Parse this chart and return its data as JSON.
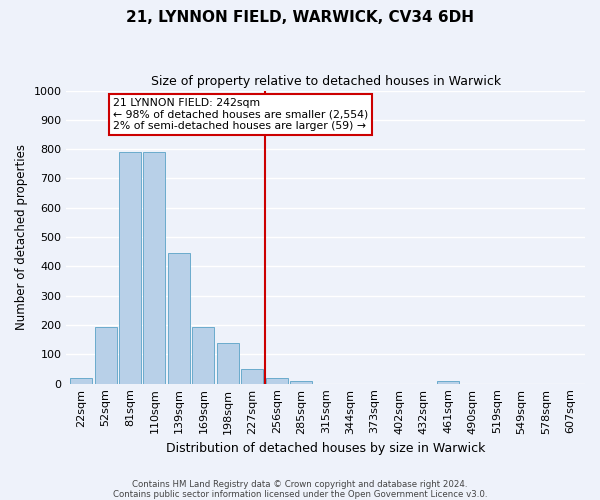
{
  "title": "21, LYNNON FIELD, WARWICK, CV34 6DH",
  "subtitle": "Size of property relative to detached houses in Warwick",
  "xlabel": "Distribution of detached houses by size in Warwick",
  "ylabel": "Number of detached properties",
  "bar_labels": [
    "22sqm",
    "52sqm",
    "81sqm",
    "110sqm",
    "139sqm",
    "169sqm",
    "198sqm",
    "227sqm",
    "256sqm",
    "285sqm",
    "315sqm",
    "344sqm",
    "373sqm",
    "402sqm",
    "432sqm",
    "461sqm",
    "490sqm",
    "519sqm",
    "549sqm",
    "578sqm",
    "607sqm"
  ],
  "bar_values": [
    20,
    195,
    790,
    790,
    445,
    195,
    140,
    50,
    20,
    10,
    0,
    0,
    0,
    0,
    0,
    10,
    0,
    0,
    0,
    0,
    0
  ],
  "bar_color": "#b8d0e8",
  "bar_edge_color": "#6aabcc",
  "vline_x_index": 7.5,
  "vline_color": "#cc0000",
  "annotation_title": "21 LYNNON FIELD: 242sqm",
  "annotation_line1": "← 98% of detached houses are smaller (2,554)",
  "annotation_line2": "2% of semi-detached houses are larger (59) →",
  "annotation_box_color": "#cc0000",
  "ylim": [
    0,
    1000
  ],
  "yticks": [
    0,
    100,
    200,
    300,
    400,
    500,
    600,
    700,
    800,
    900,
    1000
  ],
  "footnote1": "Contains HM Land Registry data © Crown copyright and database right 2024.",
  "footnote2": "Contains public sector information licensed under the Open Government Licence v3.0.",
  "bg_color": "#eef2fa"
}
